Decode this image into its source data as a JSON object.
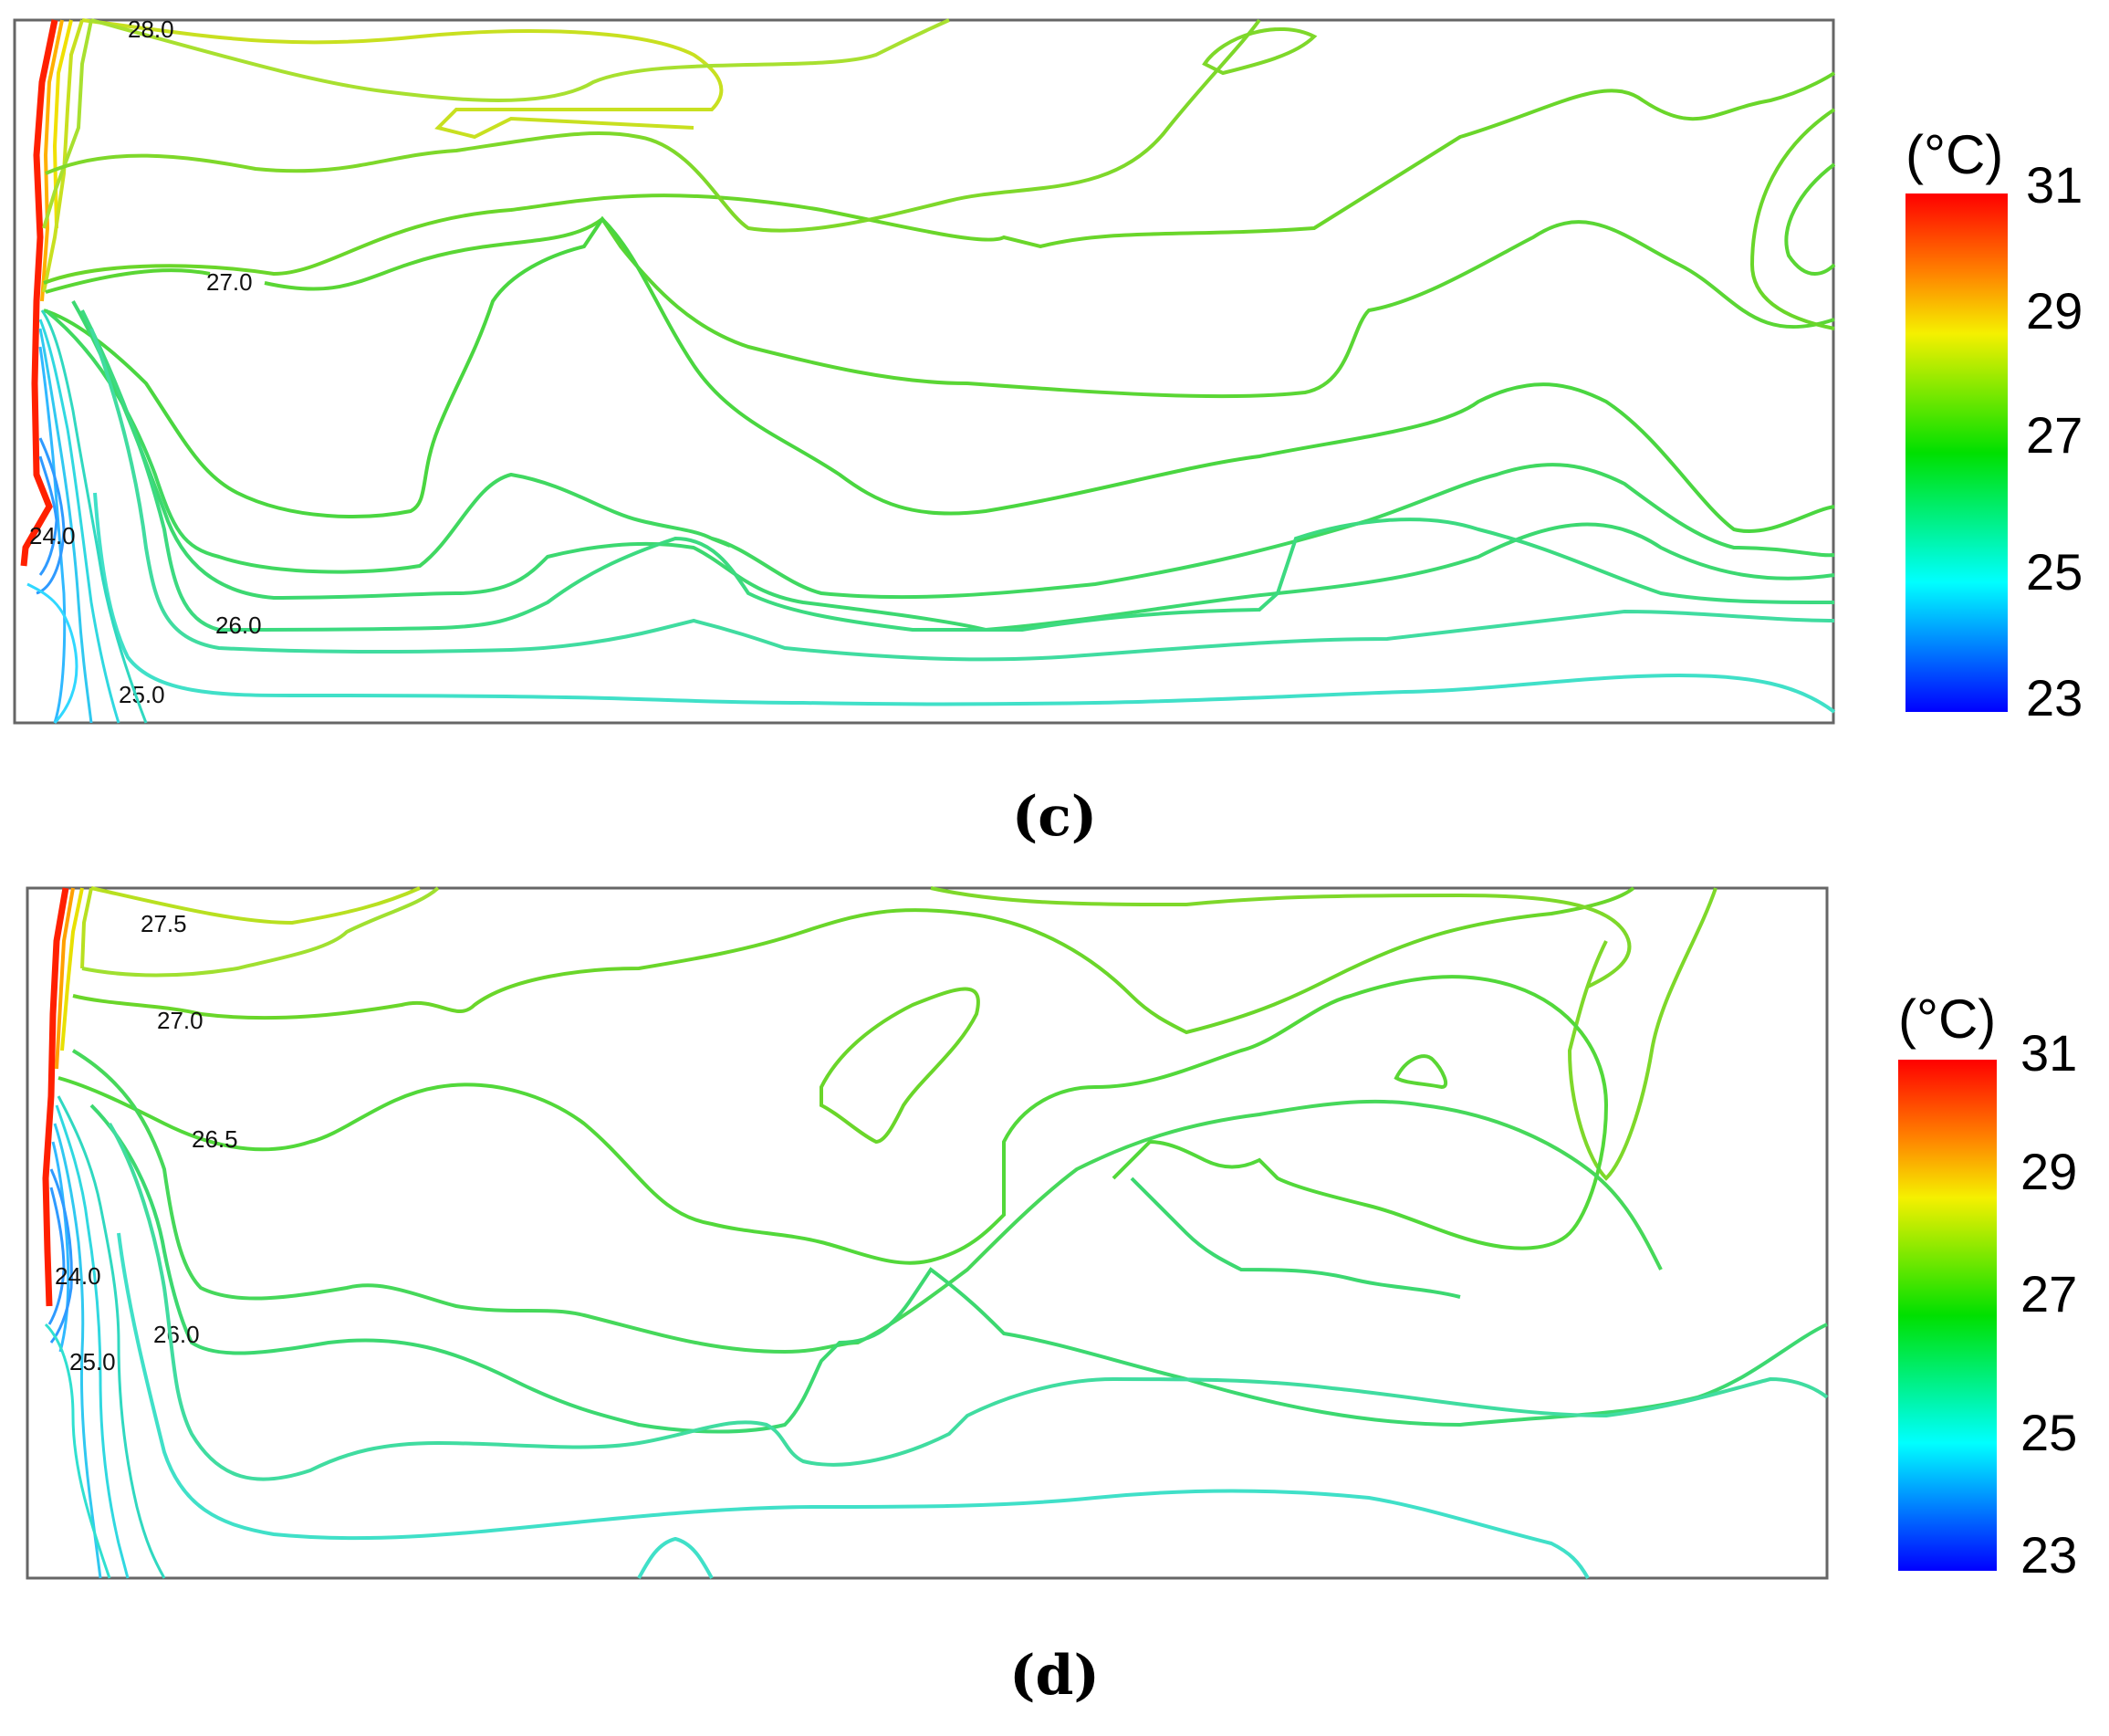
{
  "chart_data": [
    {
      "type": "contour",
      "panel_label": "(c)",
      "colorbar": {
        "unit": "(°C)",
        "min": 23,
        "max": 31,
        "ticks": [
          31,
          29,
          27,
          25,
          23
        ]
      },
      "contour_labels": [
        "28.0",
        "27.0",
        "26.0",
        "25.0",
        "24.0"
      ]
    },
    {
      "type": "contour",
      "panel_label": "(d)",
      "colorbar": {
        "unit": "(°C)",
        "min": 23,
        "max": 31,
        "ticks": [
          31,
          29,
          27,
          25,
          23
        ]
      },
      "contour_labels": [
        "27.5",
        "27.0",
        "26.5",
        "24.0",
        "25.0",
        "26.0"
      ]
    }
  ],
  "colors": {
    "c31": "#ff0000",
    "c29": "#f0f000",
    "c27": "#00e000",
    "c25": "#00ffff",
    "c23": "#0000ff",
    "line_275": "#b8e020",
    "line_27": "#6ad62a",
    "line_265": "#52d83a",
    "line_26": "#3cd870",
    "line_255": "#40dca0",
    "line_25": "#40e0c8",
    "line_24": "#30a0ff"
  }
}
